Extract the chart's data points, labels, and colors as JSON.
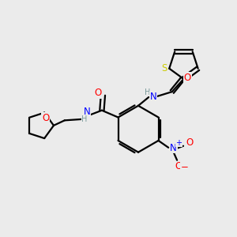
{
  "bg_color": "#ebebeb",
  "atom_colors": {
    "C": "#000000",
    "H": "#7a9a9a",
    "N": "#0000ff",
    "O": "#ff0000",
    "S": "#cccc00"
  },
  "bond_color": "#000000",
  "bond_width": 1.6,
  "figsize": [
    3.0,
    3.0
  ],
  "dpi": 100,
  "xlim": [
    0,
    10
  ],
  "ylim": [
    0,
    10
  ]
}
